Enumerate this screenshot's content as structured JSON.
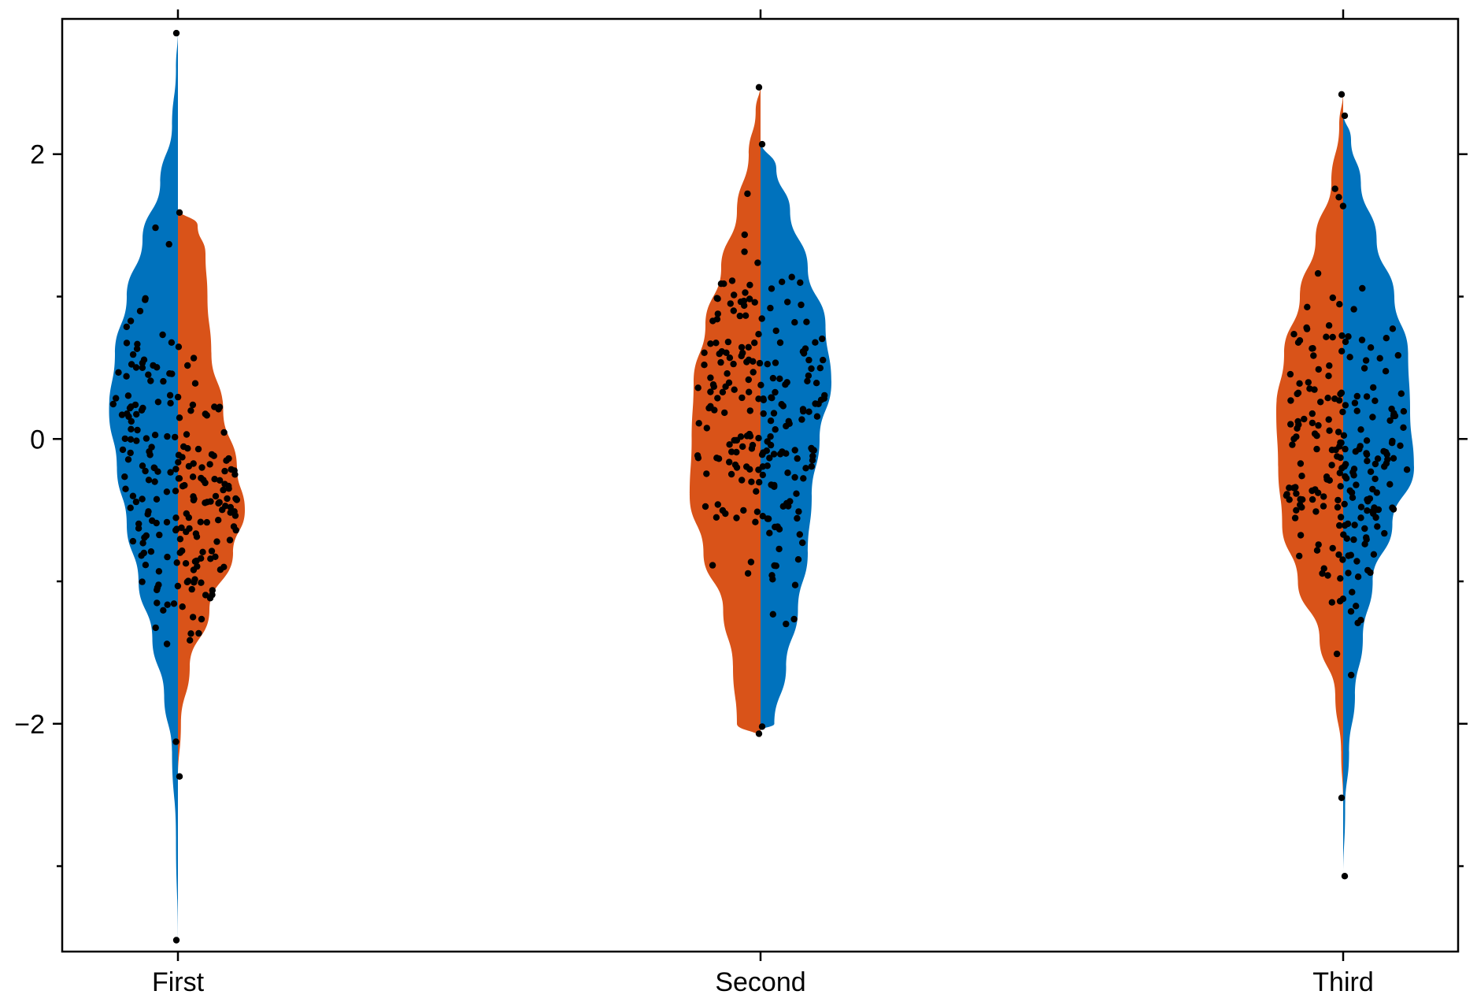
{
  "chart_data": {
    "type": "violin",
    "subtype": "split violin with jittered points",
    "title": "",
    "xlabel": "",
    "ylabel": "",
    "categories": [
      "First",
      "Second",
      "Third"
    ],
    "ylim": [
      -3.6,
      2.95
    ],
    "yticks_major": [
      -2,
      0,
      2
    ],
    "yticks_major_labels": [
      "−2",
      "0",
      "2"
    ],
    "yticks_minor": [
      -3,
      -1,
      1
    ],
    "grid": false,
    "legend": "none",
    "colors": {
      "blue": "#0072bd",
      "orange": "#d95319",
      "points": "#000000"
    },
    "violins": [
      {
        "category": "First",
        "left": {
          "color": "#0072bd",
          "min": -3.55,
          "max": 2.88,
          "density": [
            [
              -3.55,
              0.0
            ],
            [
              -2.8,
              0.02
            ],
            [
              -2.2,
              0.06
            ],
            [
              -1.8,
              0.14
            ],
            [
              -1.4,
              0.26
            ],
            [
              -1.0,
              0.4
            ],
            [
              -0.6,
              0.52
            ],
            [
              -0.2,
              0.62
            ],
            [
              0.2,
              0.7
            ],
            [
              0.6,
              0.64
            ],
            [
              1.0,
              0.52
            ],
            [
              1.4,
              0.36
            ],
            [
              1.8,
              0.18
            ],
            [
              2.2,
              0.06
            ],
            [
              2.6,
              0.02
            ],
            [
              2.88,
              0.0
            ]
          ]
        },
        "right": {
          "color": "#d95319",
          "min": -2.4,
          "max": 1.62,
          "density": [
            [
              -2.4,
              0.0
            ],
            [
              -2.0,
              0.03
            ],
            [
              -1.6,
              0.12
            ],
            [
              -1.2,
              0.32
            ],
            [
              -0.8,
              0.56
            ],
            [
              -0.5,
              0.68
            ],
            [
              -0.2,
              0.6
            ],
            [
              0.2,
              0.46
            ],
            [
              0.6,
              0.34
            ],
            [
              1.0,
              0.3
            ],
            [
              1.3,
              0.28
            ],
            [
              1.5,
              0.2
            ],
            [
              1.62,
              0.0
            ]
          ]
        }
      },
      {
        "category": "Second",
        "left": {
          "color": "#d95319",
          "min": -2.1,
          "max": 2.5,
          "density": [
            [
              -2.1,
              0.0
            ],
            [
              -2.0,
              0.24
            ],
            [
              -1.6,
              0.28
            ],
            [
              -1.2,
              0.38
            ],
            [
              -0.8,
              0.58
            ],
            [
              -0.4,
              0.72
            ],
            [
              0.0,
              0.7
            ],
            [
              0.4,
              0.68
            ],
            [
              0.8,
              0.56
            ],
            [
              1.2,
              0.4
            ],
            [
              1.6,
              0.24
            ],
            [
              2.0,
              0.12
            ],
            [
              2.3,
              0.05
            ],
            [
              2.5,
              0.0
            ]
          ]
        },
        "right": {
          "color": "#0072bd",
          "min": -2.05,
          "max": 2.1,
          "density": [
            [
              -2.05,
              0.0
            ],
            [
              -2.0,
              0.14
            ],
            [
              -1.6,
              0.26
            ],
            [
              -1.2,
              0.38
            ],
            [
              -0.8,
              0.48
            ],
            [
              -0.4,
              0.52
            ],
            [
              0.0,
              0.6
            ],
            [
              0.4,
              0.72
            ],
            [
              0.8,
              0.66
            ],
            [
              1.2,
              0.48
            ],
            [
              1.6,
              0.3
            ],
            [
              1.9,
              0.16
            ],
            [
              2.1,
              0.0
            ]
          ]
        }
      },
      {
        "category": "Third",
        "left": {
          "color": "#d95319",
          "min": -2.55,
          "max": 2.45,
          "density": [
            [
              -2.55,
              0.0
            ],
            [
              -2.2,
              0.02
            ],
            [
              -1.8,
              0.08
            ],
            [
              -1.4,
              0.24
            ],
            [
              -1.0,
              0.46
            ],
            [
              -0.6,
              0.62
            ],
            [
              -0.2,
              0.66
            ],
            [
              0.2,
              0.68
            ],
            [
              0.6,
              0.6
            ],
            [
              1.0,
              0.44
            ],
            [
              1.4,
              0.28
            ],
            [
              1.8,
              0.12
            ],
            [
              2.2,
              0.04
            ],
            [
              2.45,
              0.0
            ]
          ]
        },
        "right": {
          "color": "#0072bd",
          "min": -3.1,
          "max": 2.3,
          "density": [
            [
              -3.1,
              0.0
            ],
            [
              -2.6,
              0.02
            ],
            [
              -2.2,
              0.06
            ],
            [
              -1.8,
              0.12
            ],
            [
              -1.4,
              0.2
            ],
            [
              -1.0,
              0.3
            ],
            [
              -0.6,
              0.5
            ],
            [
              -0.2,
              0.72
            ],
            [
              0.2,
              0.68
            ],
            [
              0.6,
              0.66
            ],
            [
              1.0,
              0.52
            ],
            [
              1.4,
              0.34
            ],
            [
              1.8,
              0.18
            ],
            [
              2.1,
              0.08
            ],
            [
              2.3,
              0.0
            ]
          ]
        }
      }
    ],
    "points_per_half": 110
  }
}
